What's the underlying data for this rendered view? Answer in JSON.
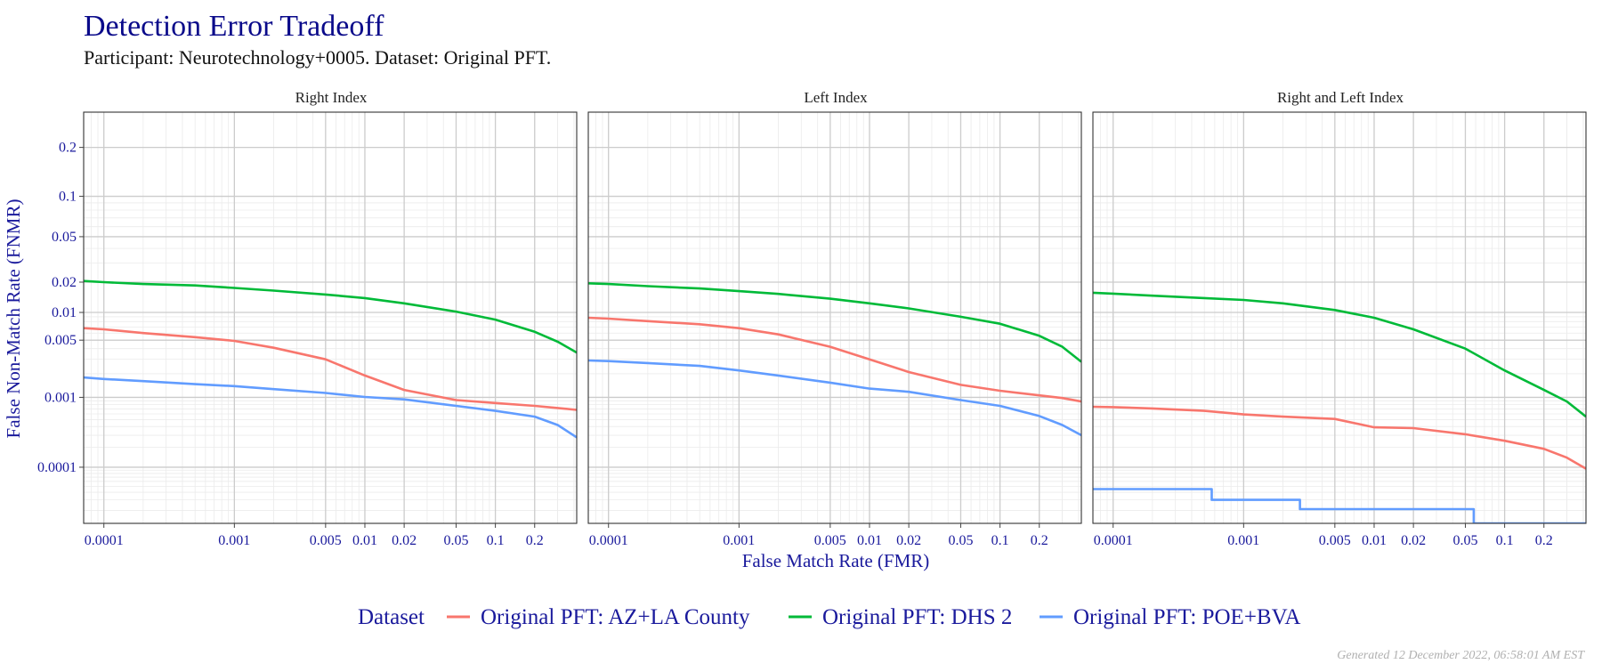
{
  "header": {
    "title": "Detection Error Tradeoff",
    "subtitle": "Participant: Neurotechnology+0005. Dataset: Original PFT."
  },
  "footer": {
    "generated": "Generated 12 December 2022, 06:58:01 AM EST"
  },
  "colors": {
    "title": "#0a0a8a",
    "axis_text": "#1a1a9c",
    "grid_major": "#cccccc",
    "grid_minor": "#ebebeb",
    "panel_border": "#333333",
    "generated": "#b0b0b0"
  },
  "chart_data": {
    "type": "line",
    "xlabel": "False Match Rate (FMR)",
    "ylabel": "False Non-Match Rate (FNMR)",
    "x_scale": "log",
    "y_scale": "probit",
    "xlim": [
      7e-05,
      0.42
    ],
    "ylim": [
      1.2e-05,
      0.3
    ],
    "x_ticks": [
      0.0001,
      0.001,
      0.005,
      0.01,
      0.02,
      0.05,
      0.1,
      0.2
    ],
    "x_tick_labels": [
      "0.0001",
      "0.001",
      "0.005",
      "0.01",
      "0.02",
      "0.05",
      "0.1",
      "0.2"
    ],
    "y_ticks": [
      0.0001,
      0.001,
      0.005,
      0.01,
      0.02,
      0.05,
      0.1,
      0.2
    ],
    "y_tick_labels": [
      "0.0001",
      "0.001",
      "0.005",
      "0.01",
      "0.02",
      "0.05",
      "0.1",
      "0.2"
    ],
    "grid": true,
    "legend": {
      "title": "Dataset",
      "placement": "bottom",
      "items": [
        {
          "name": "Original PFT: AZ+LA County",
          "color": "#f8766d"
        },
        {
          "name": "Original PFT: DHS 2",
          "color": "#00ba38"
        },
        {
          "name": "Original PFT: POE+BVA",
          "color": "#619cff"
        }
      ]
    },
    "panels": [
      {
        "title": "Right Index",
        "series": [
          {
            "name": "Original PFT: AZ+LA County",
            "color": "#f8766d",
            "x": [
              7e-05,
              0.0001,
              0.0002,
              0.0005,
              0.001,
              0.002,
              0.005,
              0.01,
              0.02,
              0.05,
              0.1,
              0.2,
              0.3,
              0.42
            ],
            "y": [
              0.0068,
              0.0066,
              0.006,
              0.0054,
              0.0049,
              0.0041,
              0.003,
              0.0019,
              0.00125,
              0.00092,
              0.00084,
              0.00077,
              0.00072,
              0.00068
            ]
          },
          {
            "name": "Original PFT: DHS 2",
            "color": "#00ba38",
            "x": [
              7e-05,
              0.0001,
              0.0002,
              0.0005,
              0.001,
              0.002,
              0.005,
              0.01,
              0.02,
              0.05,
              0.1,
              0.2,
              0.3,
              0.42
            ],
            "y": [
              0.0205,
              0.02,
              0.0192,
              0.0186,
              0.0176,
              0.0166,
              0.0152,
              0.014,
              0.0124,
              0.0102,
              0.0084,
              0.0062,
              0.0048,
              0.0036
            ]
          },
          {
            "name": "Original PFT: POE+BVA",
            "color": "#619cff",
            "x": [
              7e-05,
              0.0001,
              0.0002,
              0.0005,
              0.001,
              0.002,
              0.005,
              0.01,
              0.02,
              0.05,
              0.1,
              0.2,
              0.3,
              0.42
            ],
            "y": [
              0.0018,
              0.00172,
              0.00162,
              0.00148,
              0.0014,
              0.00128,
              0.00114,
              0.00101,
              0.00094,
              0.00077,
              0.00066,
              0.00055,
              0.00042,
              0.00028
            ]
          }
        ]
      },
      {
        "title": "Left Index",
        "series": [
          {
            "name": "Original PFT: AZ+LA County",
            "color": "#f8766d",
            "x": [
              7e-05,
              0.0001,
              0.0002,
              0.0005,
              0.001,
              0.002,
              0.005,
              0.01,
              0.02,
              0.05,
              0.1,
              0.2,
              0.3,
              0.42
            ],
            "y": [
              0.0088,
              0.0086,
              0.0081,
              0.0075,
              0.0068,
              0.0058,
              0.0042,
              0.003,
              0.0021,
              0.00145,
              0.00122,
              0.00106,
              0.00098,
              0.00088
            ]
          },
          {
            "name": "Original PFT: DHS 2",
            "color": "#00ba38",
            "x": [
              7e-05,
              0.0001,
              0.0002,
              0.0005,
              0.001,
              0.002,
              0.005,
              0.01,
              0.02,
              0.05,
              0.1,
              0.2,
              0.3,
              0.42
            ],
            "y": [
              0.0195,
              0.0192,
              0.0183,
              0.0174,
              0.0164,
              0.0154,
              0.0138,
              0.0124,
              0.011,
              0.009,
              0.0076,
              0.0056,
              0.0042,
              0.0028
            ]
          },
          {
            "name": "Original PFT: POE+BVA",
            "color": "#619cff",
            "x": [
              7e-05,
              0.0001,
              0.0002,
              0.0005,
              0.001,
              0.002,
              0.005,
              0.01,
              0.02,
              0.05,
              0.1,
              0.2,
              0.3,
              0.42
            ],
            "y": [
              0.0029,
              0.00285,
              0.0027,
              0.0025,
              0.0022,
              0.0019,
              0.00155,
              0.0013,
              0.00118,
              0.00092,
              0.00077,
              0.00056,
              0.00042,
              0.0003
            ]
          }
        ]
      },
      {
        "title": "Right and Left Index",
        "series": [
          {
            "name": "Original PFT: AZ+LA County",
            "color": "#f8766d",
            "x": [
              7e-05,
              0.0001,
              0.0002,
              0.0005,
              0.001,
              0.002,
              0.005,
              0.01,
              0.02,
              0.05,
              0.1,
              0.2,
              0.3,
              0.42
            ],
            "y": [
              0.00075,
              0.00074,
              0.00071,
              0.00066,
              0.00059,
              0.00055,
              0.00051,
              0.00039,
              0.00038,
              0.00031,
              0.00025,
              0.00019,
              0.00014,
              9.5e-05
            ]
          },
          {
            "name": "Original PFT: DHS 2",
            "color": "#00ba38",
            "x": [
              7e-05,
              0.0001,
              0.0002,
              0.0005,
              0.001,
              0.002,
              0.005,
              0.01,
              0.02,
              0.05,
              0.1,
              0.2,
              0.3,
              0.42
            ],
            "y": [
              0.0158,
              0.0155,
              0.0148,
              0.014,
              0.0134,
              0.0124,
              0.0106,
              0.0088,
              0.0066,
              0.004,
              0.0022,
              0.00125,
              0.00088,
              0.00055
            ]
          },
          {
            "name": "Original PFT: POE+BVA",
            "color": "#619cff",
            "x": [
              7e-05,
              0.00057,
              0.00057,
              0.0027,
              0.0027,
              0.058,
              0.058,
              0.42
            ],
            "y": [
              4.5e-05,
              4.5e-05,
              3e-05,
              3e-05,
              2.1e-05,
              2.1e-05,
              1.2e-05,
              1.2e-05
            ]
          }
        ]
      }
    ]
  }
}
